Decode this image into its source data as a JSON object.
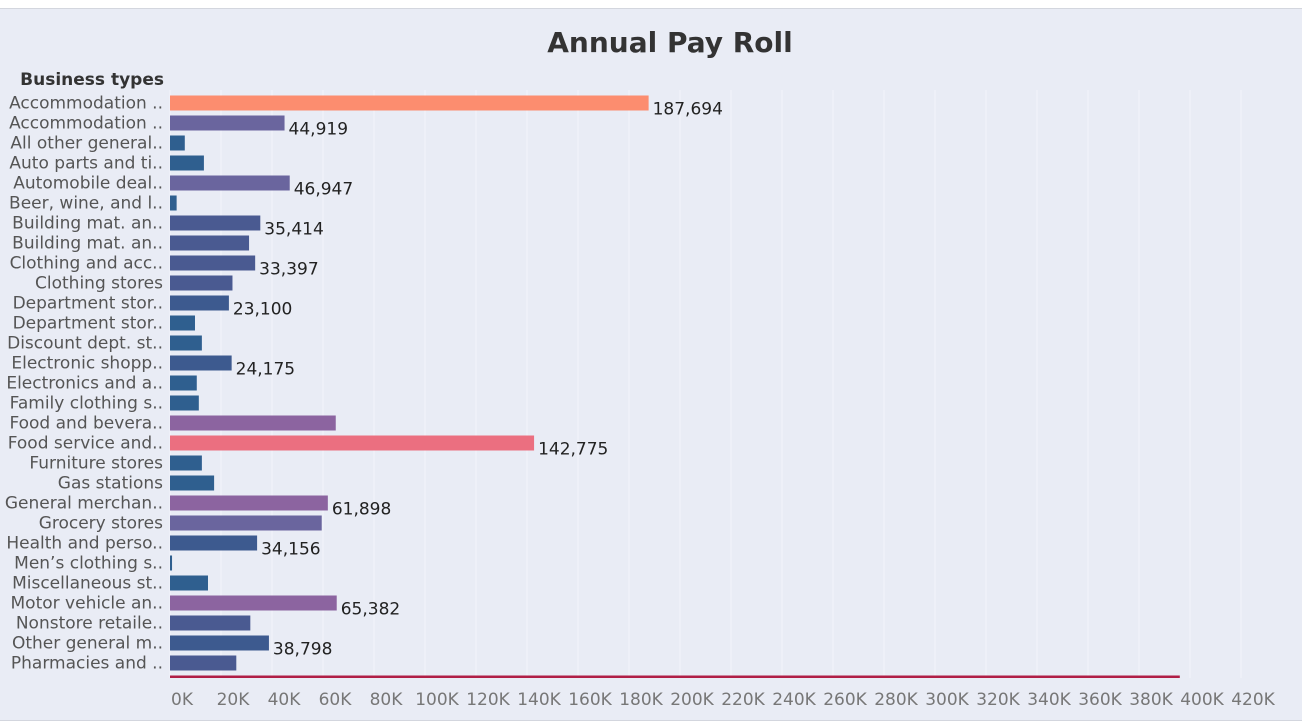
{
  "chart_data": {
    "type": "bar",
    "orientation": "horizontal",
    "title": "Annual Pay Roll",
    "category_header": "Business types",
    "xlim": [
      0,
      420000
    ],
    "ticks": [
      {
        "value": 0,
        "label": "0K"
      },
      {
        "value": 20000,
        "label": "20K"
      },
      {
        "value": 40000,
        "label": "40K"
      },
      {
        "value": 60000,
        "label": "60K"
      },
      {
        "value": 80000,
        "label": "80K"
      },
      {
        "value": 100000,
        "label": "100K"
      },
      {
        "value": 120000,
        "label": "120K"
      },
      {
        "value": 140000,
        "label": "140K"
      },
      {
        "value": 160000,
        "label": "160K"
      },
      {
        "value": 180000,
        "label": "180K"
      },
      {
        "value": 200000,
        "label": "200K"
      },
      {
        "value": 220000,
        "label": "220K"
      },
      {
        "value": 240000,
        "label": "240K"
      },
      {
        "value": 260000,
        "label": "260K"
      },
      {
        "value": 280000,
        "label": "280K"
      },
      {
        "value": 300000,
        "label": "300K"
      },
      {
        "value": 320000,
        "label": "320K"
      },
      {
        "value": 340000,
        "label": "340K"
      },
      {
        "value": 360000,
        "label": "360K"
      },
      {
        "value": 380000,
        "label": "380K"
      },
      {
        "value": 400000,
        "label": "400K"
      },
      {
        "value": 420000,
        "label": "420K"
      }
    ],
    "grid": true,
    "bars": [
      {
        "category": "Accommodation ..",
        "value": 187694,
        "label": "187,694",
        "color": "#fc8d6f"
      },
      {
        "category": "Accommodation ..",
        "value": 44919,
        "label": "44,919",
        "color": "#6a659e"
      },
      {
        "category": "All other general..",
        "value": 5800,
        "label": "",
        "color": "#2f5f8f"
      },
      {
        "category": "Auto parts and ti..",
        "value": 13300,
        "label": "",
        "color": "#2f5f8f"
      },
      {
        "category": "Automobile deal..",
        "value": 46947,
        "label": "46,947",
        "color": "#6a659e"
      },
      {
        "category": "Beer, wine, and l..",
        "value": 2600,
        "label": "",
        "color": "#2f5f8f"
      },
      {
        "category": "Building mat. an..",
        "value": 35414,
        "label": "35,414",
        "color": "#4a5a91"
      },
      {
        "category": "Building mat. an..",
        "value": 31000,
        "label": "",
        "color": "#4a5a91"
      },
      {
        "category": "Clothing and acc..",
        "value": 33397,
        "label": "33,397",
        "color": "#4a5a91"
      },
      {
        "category": "Clothing stores",
        "value": 24500,
        "label": "",
        "color": "#4a5a91"
      },
      {
        "category": "Department stor..",
        "value": 23100,
        "label": "23,100",
        "color": "#3d5a8f"
      },
      {
        "category": "Department stor..",
        "value": 9800,
        "label": "",
        "color": "#2f5f8f"
      },
      {
        "category": "Discount dept. st..",
        "value": 12500,
        "label": "",
        "color": "#2f5f8f"
      },
      {
        "category": "Electronic shopp..",
        "value": 24175,
        "label": "24,175",
        "color": "#3d5a8f"
      },
      {
        "category": "Electronics and a..",
        "value": 10500,
        "label": "",
        "color": "#2f5f8f"
      },
      {
        "category": "Family clothing s..",
        "value": 11300,
        "label": "",
        "color": "#2f5f8f"
      },
      {
        "category": "Food and bevera..",
        "value": 65000,
        "label": "",
        "color": "#8c64a0"
      },
      {
        "category": "Food service and..",
        "value": 142775,
        "label": "142,775",
        "color": "#eb6f80"
      },
      {
        "category": "Furniture stores",
        "value": 12500,
        "label": "",
        "color": "#2f5f8f"
      },
      {
        "category": "Gas stations",
        "value": 17300,
        "label": "",
        "color": "#2f5f8f"
      },
      {
        "category": "General merchan..",
        "value": 61898,
        "label": "61,898",
        "color": "#8c64a0"
      },
      {
        "category": "Grocery stores",
        "value": 59500,
        "label": "",
        "color": "#6a659e"
      },
      {
        "category": "Health and perso..",
        "value": 34156,
        "label": "34,156",
        "color": "#3d5a8f"
      },
      {
        "category": "Men’s clothing s..",
        "value": 800,
        "label": "",
        "color": "#2f5f8f"
      },
      {
        "category": "Miscellaneous st..",
        "value": 14900,
        "label": "",
        "color": "#2f5f8f"
      },
      {
        "category": "Motor vehicle an..",
        "value": 65382,
        "label": "65,382",
        "color": "#8c64a0"
      },
      {
        "category": "Nonstore retaile..",
        "value": 31500,
        "label": "",
        "color": "#4a5a91"
      },
      {
        "category": "Other general m..",
        "value": 38798,
        "label": "38,798",
        "color": "#3d5a8f"
      },
      {
        "category": "Pharmacies and ..",
        "value": 26000,
        "label": "",
        "color": "#4a5a91"
      },
      {
        "category": "",
        "value": 396000,
        "label": "",
        "color": "#b01e46"
      }
    ]
  }
}
